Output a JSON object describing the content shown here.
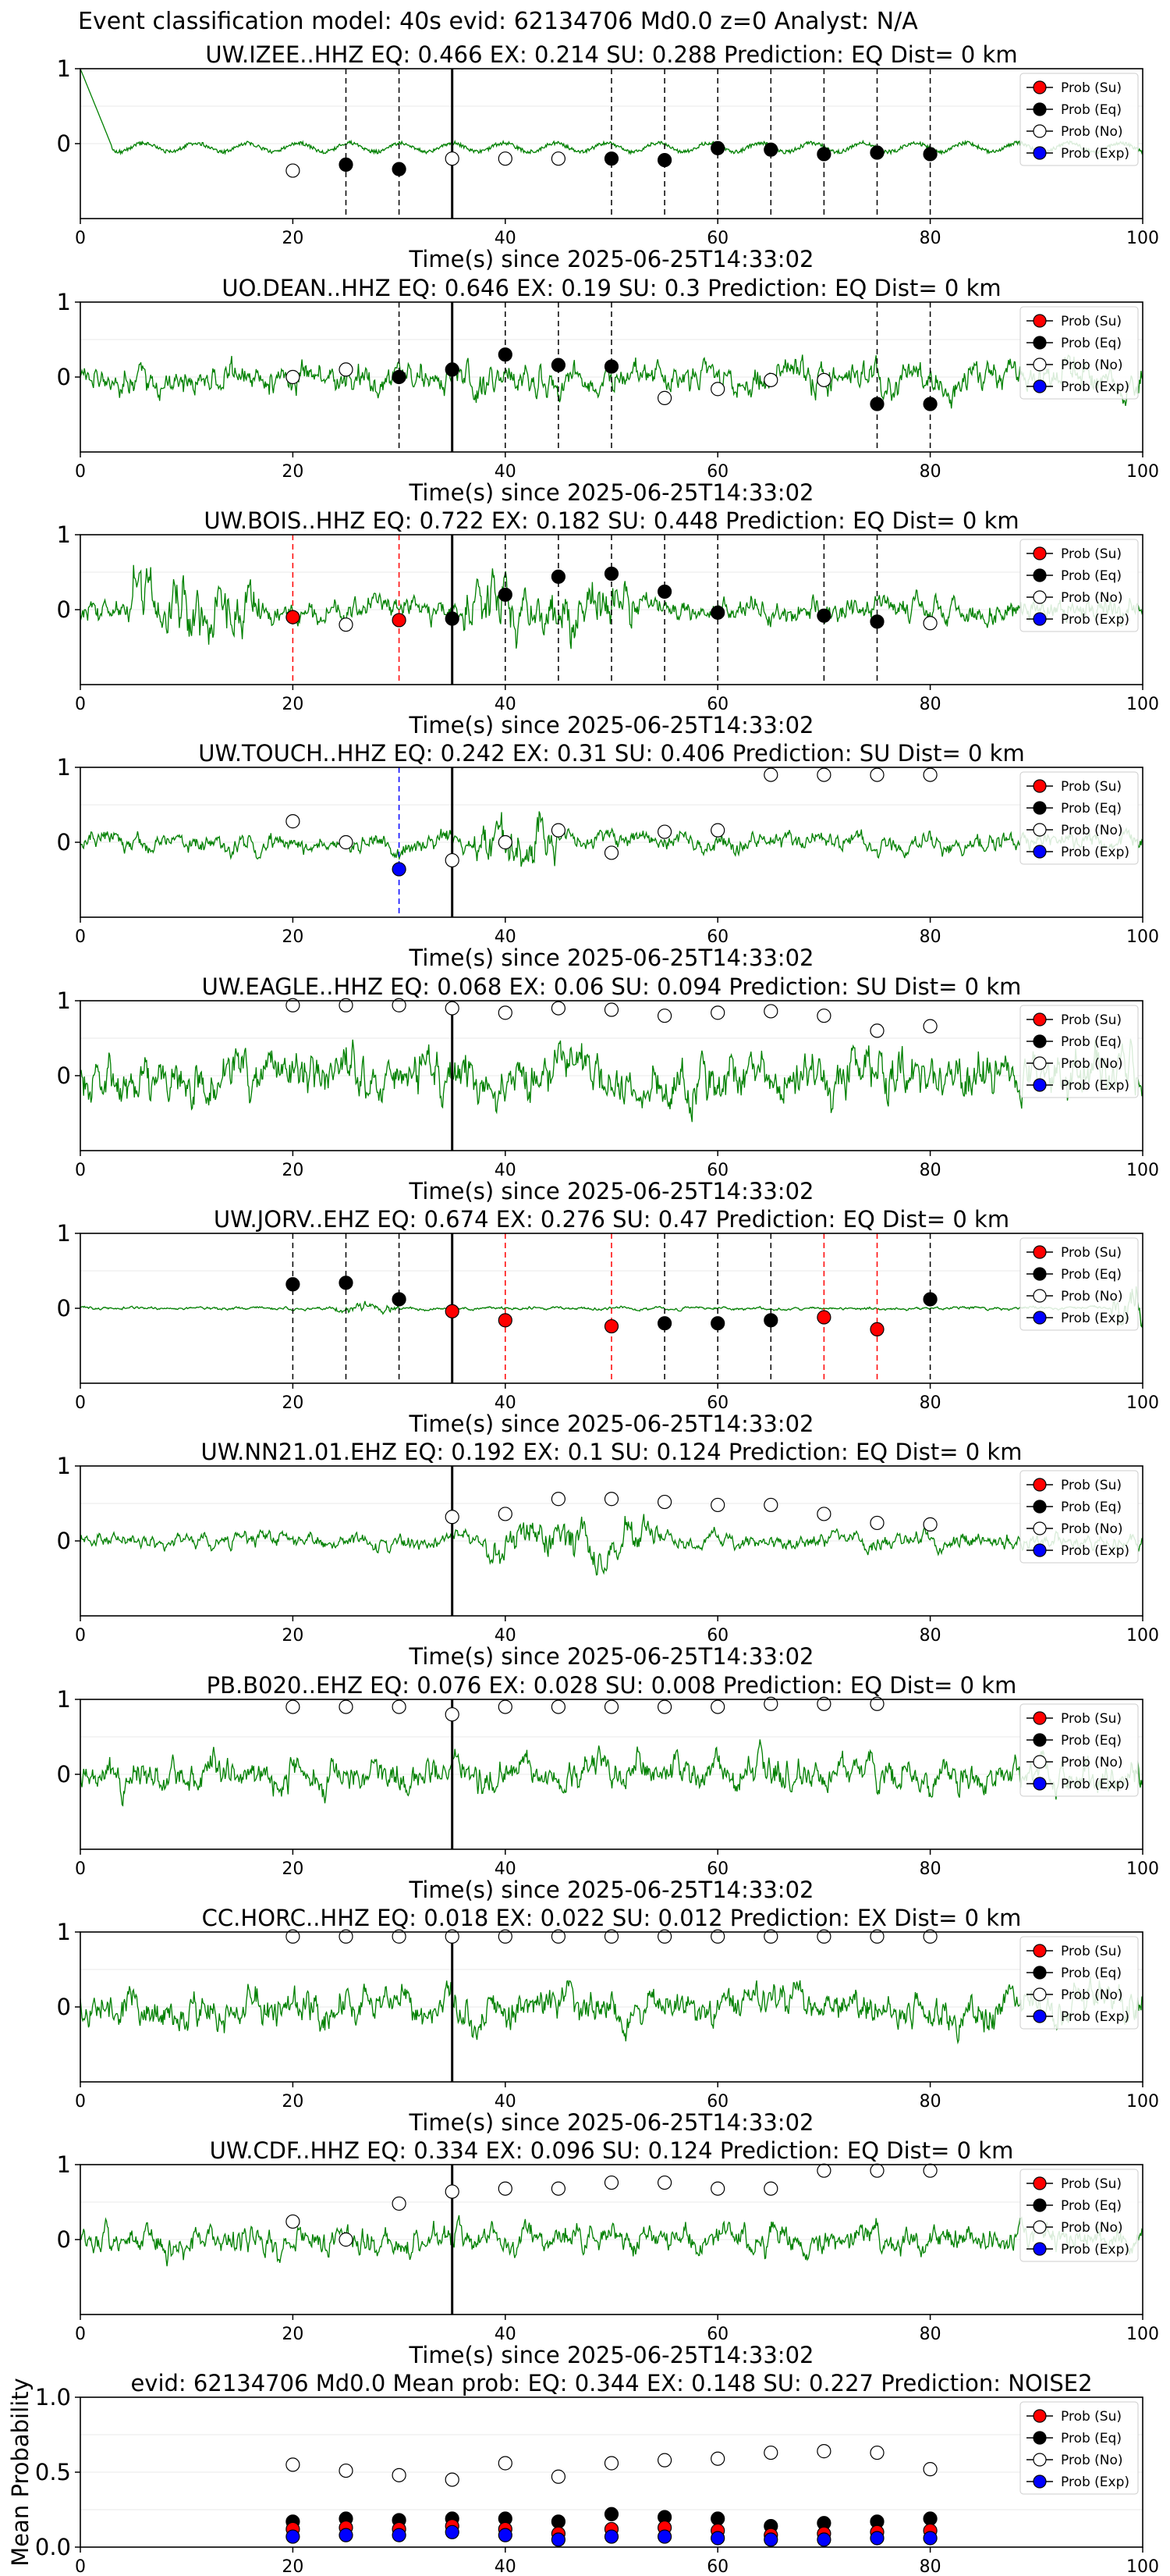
{
  "title": "Event classification model: 40s evid: 62134706 Md0.0 z=0 Analyst: N/A",
  "colors": {
    "waveform": "#008000",
    "su": "#ff0000",
    "eq": "#000000",
    "no": "#ffffff",
    "exp": "#0000ff",
    "marker_line": "#000000"
  },
  "legend": {
    "su": "Prob (Su)",
    "eq": "Prob (Eq)",
    "no": "Prob (No)",
    "exp": "Prob (Exp)"
  },
  "chart_data": [
    {
      "type": "line",
      "title": "UW.IZEE..HHZ   EQ: 0.466  EX: 0.214  SU: 0.288   Prediction: EQ    Dist= 0 km",
      "xlabel": "Time(s) since 2025-06-25T14:33:02",
      "xlim": [
        0,
        100
      ],
      "ylim": [
        -1,
        1
      ],
      "xticks": [
        "0",
        "20",
        "40",
        "60",
        "80",
        "100"
      ],
      "yticks": [
        "1",
        "0"
      ],
      "marker_time": 35,
      "legend_position": "top-right",
      "waveform": {
        "kind": "izee",
        "amplitude": 0.08
      },
      "points": [
        {
          "t": 20,
          "class": "no",
          "p": 0.32
        },
        {
          "t": 25,
          "class": "eq",
          "p": 0.36
        },
        {
          "t": 30,
          "class": "eq",
          "p": 0.33
        },
        {
          "t": 35,
          "class": "no",
          "p": 0.4
        },
        {
          "t": 40,
          "class": "no",
          "p": 0.4
        },
        {
          "t": 45,
          "class": "no",
          "p": 0.4
        },
        {
          "t": 50,
          "class": "eq",
          "p": 0.4
        },
        {
          "t": 55,
          "class": "eq",
          "p": 0.39
        },
        {
          "t": 60,
          "class": "eq",
          "p": 0.47
        },
        {
          "t": 65,
          "class": "eq",
          "p": 0.46
        },
        {
          "t": 70,
          "class": "eq",
          "p": 0.43
        },
        {
          "t": 75,
          "class": "eq",
          "p": 0.44
        },
        {
          "t": 80,
          "class": "eq",
          "p": 0.43
        }
      ]
    },
    {
      "type": "line",
      "title": "UO.DEAN..HHZ   EQ: 0.646  EX: 0.19  SU: 0.3   Prediction: EQ    Dist= 0 km",
      "xlabel": "Time(s) since 2025-06-25T14:33:02",
      "xlim": [
        0,
        100
      ],
      "ylim": [
        -1,
        1
      ],
      "xticks": [
        "0",
        "20",
        "40",
        "60",
        "80",
        "100"
      ],
      "yticks": [
        "1",
        "0"
      ],
      "marker_time": 35,
      "legend_position": "top-right",
      "waveform": {
        "kind": "mid",
        "amplitude": 0.5
      },
      "points": [
        {
          "t": 20,
          "class": "no",
          "p": 0.5
        },
        {
          "t": 25,
          "class": "no",
          "p": 0.55
        },
        {
          "t": 30,
          "class": "eq",
          "p": 0.5
        },
        {
          "t": 35,
          "class": "eq",
          "p": 0.55
        },
        {
          "t": 40,
          "class": "eq",
          "p": 0.65
        },
        {
          "t": 45,
          "class": "eq",
          "p": 0.58
        },
        {
          "t": 50,
          "class": "eq",
          "p": 0.57
        },
        {
          "t": 55,
          "class": "no",
          "p": 0.36
        },
        {
          "t": 60,
          "class": "no",
          "p": 0.42
        },
        {
          "t": 65,
          "class": "no",
          "p": 0.48
        },
        {
          "t": 70,
          "class": "no",
          "p": 0.48
        },
        {
          "t": 75,
          "class": "eq",
          "p": 0.32
        },
        {
          "t": 80,
          "class": "eq",
          "p": 0.32
        }
      ]
    },
    {
      "type": "line",
      "title": "UW.BOIS..HHZ   EQ: 0.722  EX: 0.182  SU: 0.448   Prediction: EQ    Dist= 0 km",
      "xlabel": "Time(s) since 2025-06-25T14:33:02",
      "xlim": [
        0,
        100
      ],
      "ylim": [
        -1,
        1
      ],
      "xticks": [
        "0",
        "20",
        "40",
        "60",
        "80",
        "100"
      ],
      "yticks": [
        "1",
        "0"
      ],
      "marker_time": 35,
      "legend_position": "top-right",
      "waveform": {
        "kind": "bois",
        "amplitude": 0.5
      },
      "points": [
        {
          "t": 20,
          "class": "su",
          "p": 0.45
        },
        {
          "t": 25,
          "class": "no",
          "p": 0.4
        },
        {
          "t": 30,
          "class": "su",
          "p": 0.43
        },
        {
          "t": 35,
          "class": "eq",
          "p": 0.44
        },
        {
          "t": 40,
          "class": "eq",
          "p": 0.6
        },
        {
          "t": 45,
          "class": "eq",
          "p": 0.72
        },
        {
          "t": 50,
          "class": "eq",
          "p": 0.74
        },
        {
          "t": 55,
          "class": "eq",
          "p": 0.62
        },
        {
          "t": 60,
          "class": "eq",
          "p": 0.48
        },
        {
          "t": 70,
          "class": "eq",
          "p": 0.46
        },
        {
          "t": 75,
          "class": "eq",
          "p": 0.42
        },
        {
          "t": 80,
          "class": "no",
          "p": 0.41
        }
      ]
    },
    {
      "type": "line",
      "title": "UW.TOUCH..HHZ   EQ: 0.242  EX: 0.31  SU: 0.406   Prediction: SU    Dist= 0 km",
      "xlabel": "Time(s) since 2025-06-25T14:33:02",
      "xlim": [
        0,
        100
      ],
      "ylim": [
        -1,
        1
      ],
      "xticks": [
        "0",
        "20",
        "40",
        "60",
        "80",
        "100"
      ],
      "yticks": [
        "1",
        "0"
      ],
      "marker_time": 35,
      "legend_position": "top-right",
      "waveform": {
        "kind": "touch",
        "amplitude": 0.3
      },
      "points": [
        {
          "t": 20,
          "class": "no",
          "p": 0.64
        },
        {
          "t": 25,
          "class": "no",
          "p": 0.5
        },
        {
          "t": 30,
          "class": "exp",
          "p": 0.32
        },
        {
          "t": 35,
          "class": "no",
          "p": 0.38
        },
        {
          "t": 40,
          "class": "no",
          "p": 0.5
        },
        {
          "t": 45,
          "class": "no",
          "p": 0.58
        },
        {
          "t": 50,
          "class": "no",
          "p": 0.43
        },
        {
          "t": 55,
          "class": "no",
          "p": 0.57
        },
        {
          "t": 60,
          "class": "no",
          "p": 0.58
        },
        {
          "t": 65,
          "class": "no",
          "p": 0.95
        },
        {
          "t": 70,
          "class": "no",
          "p": 0.95
        },
        {
          "t": 75,
          "class": "no",
          "p": 0.95
        },
        {
          "t": 80,
          "class": "no",
          "p": 0.95
        }
      ]
    },
    {
      "type": "line",
      "title": "UW.EAGLE..HHZ   EQ: 0.068  EX: 0.06  SU: 0.094   Prediction: SU    Dist= 0 km",
      "xlabel": "Time(s) since 2025-06-25T14:33:02",
      "xlim": [
        0,
        100
      ],
      "ylim": [
        -1,
        1
      ],
      "xticks": [
        "0",
        "20",
        "40",
        "60",
        "80",
        "100"
      ],
      "yticks": [
        "1",
        "0"
      ],
      "marker_time": 35,
      "legend_position": "top-right",
      "waveform": {
        "kind": "loud",
        "amplitude": 0.8
      },
      "points": [
        {
          "t": 20,
          "class": "no",
          "p": 0.97
        },
        {
          "t": 25,
          "class": "no",
          "p": 0.97
        },
        {
          "t": 30,
          "class": "no",
          "p": 0.97
        },
        {
          "t": 35,
          "class": "no",
          "p": 0.95
        },
        {
          "t": 40,
          "class": "no",
          "p": 0.92
        },
        {
          "t": 45,
          "class": "no",
          "p": 0.95
        },
        {
          "t": 50,
          "class": "no",
          "p": 0.94
        },
        {
          "t": 55,
          "class": "no",
          "p": 0.9
        },
        {
          "t": 60,
          "class": "no",
          "p": 0.92
        },
        {
          "t": 65,
          "class": "no",
          "p": 0.93
        },
        {
          "t": 70,
          "class": "no",
          "p": 0.9
        },
        {
          "t": 75,
          "class": "no",
          "p": 0.8
        },
        {
          "t": 80,
          "class": "no",
          "p": 0.83
        }
      ]
    },
    {
      "type": "line",
      "title": "UW.JORV..EHZ   EQ: 0.674  EX: 0.276  SU: 0.47   Prediction: EQ    Dist= 0 km",
      "xlabel": "Time(s) since 2025-06-25T14:33:02",
      "xlim": [
        0,
        100
      ],
      "ylim": [
        -1,
        1
      ],
      "xticks": [
        "0",
        "20",
        "40",
        "60",
        "80",
        "100"
      ],
      "yticks": [
        "1",
        "0"
      ],
      "marker_time": 35,
      "legend_position": "top-right",
      "waveform": {
        "kind": "jorv",
        "amplitude": 0.05
      },
      "points": [
        {
          "t": 20,
          "class": "eq",
          "p": 0.66
        },
        {
          "t": 25,
          "class": "eq",
          "p": 0.67
        },
        {
          "t": 30,
          "class": "eq",
          "p": 0.56
        },
        {
          "t": 35,
          "class": "su",
          "p": 0.48
        },
        {
          "t": 40,
          "class": "su",
          "p": 0.42
        },
        {
          "t": 50,
          "class": "su",
          "p": 0.38
        },
        {
          "t": 55,
          "class": "eq",
          "p": 0.4
        },
        {
          "t": 60,
          "class": "eq",
          "p": 0.4
        },
        {
          "t": 65,
          "class": "eq",
          "p": 0.42
        },
        {
          "t": 70,
          "class": "su",
          "p": 0.44
        },
        {
          "t": 75,
          "class": "su",
          "p": 0.36
        },
        {
          "t": 80,
          "class": "eq",
          "p": 0.56
        }
      ]
    },
    {
      "type": "line",
      "title": "UW.NN21.01.EHZ   EQ: 0.192  EX: 0.1  SU: 0.124   Prediction: EQ    Dist= 0 km",
      "xlabel": "Time(s) since 2025-06-25T14:33:02",
      "xlim": [
        0,
        100
      ],
      "ylim": [
        -1,
        1
      ],
      "xticks": [
        "0",
        "20",
        "40",
        "60",
        "80",
        "100"
      ],
      "yticks": [
        "1",
        "0"
      ],
      "marker_time": 35,
      "legend_position": "top-right",
      "waveform": {
        "kind": "nn21",
        "amplitude": 0.25
      },
      "points": [
        {
          "t": 35,
          "class": "no",
          "p": 0.66
        },
        {
          "t": 40,
          "class": "no",
          "p": 0.68
        },
        {
          "t": 45,
          "class": "no",
          "p": 0.78
        },
        {
          "t": 50,
          "class": "no",
          "p": 0.78
        },
        {
          "t": 55,
          "class": "no",
          "p": 0.76
        },
        {
          "t": 60,
          "class": "no",
          "p": 0.74
        },
        {
          "t": 65,
          "class": "no",
          "p": 0.74
        },
        {
          "t": 70,
          "class": "no",
          "p": 0.68
        },
        {
          "t": 75,
          "class": "no",
          "p": 0.62
        },
        {
          "t": 80,
          "class": "no",
          "p": 0.61
        }
      ]
    },
    {
      "type": "line",
      "title": "PB.B020..EHZ   EQ: 0.076  EX: 0.028  SU: 0.008   Prediction: EQ    Dist= 0 km",
      "xlabel": "Time(s) since 2025-06-25T14:33:02",
      "xlim": [
        0,
        100
      ],
      "ylim": [
        -1,
        1
      ],
      "xticks": [
        "0",
        "20",
        "40",
        "60",
        "80",
        "100"
      ],
      "yticks": [
        "1",
        "0"
      ],
      "marker_time": 35,
      "legend_position": "top-right",
      "waveform": {
        "kind": "mid",
        "amplitude": 0.55
      },
      "points": [
        {
          "t": 20,
          "class": "no",
          "p": 0.95
        },
        {
          "t": 25,
          "class": "no",
          "p": 0.95
        },
        {
          "t": 30,
          "class": "no",
          "p": 0.95
        },
        {
          "t": 35,
          "class": "no",
          "p": 0.9
        },
        {
          "t": 40,
          "class": "no",
          "p": 0.95
        },
        {
          "t": 45,
          "class": "no",
          "p": 0.95
        },
        {
          "t": 50,
          "class": "no",
          "p": 0.95
        },
        {
          "t": 55,
          "class": "no",
          "p": 0.95
        },
        {
          "t": 60,
          "class": "no",
          "p": 0.95
        },
        {
          "t": 65,
          "class": "no",
          "p": 0.97
        },
        {
          "t": 70,
          "class": "no",
          "p": 0.97
        },
        {
          "t": 75,
          "class": "no",
          "p": 0.97
        }
      ]
    },
    {
      "type": "line",
      "title": "CC.HORC..HHZ   EQ: 0.018  EX: 0.022  SU: 0.012   Prediction: EX    Dist= 0 km",
      "xlabel": "Time(s) since 2025-06-25T14:33:02",
      "xlim": [
        0,
        100
      ],
      "ylim": [
        -1,
        1
      ],
      "xticks": [
        "0",
        "20",
        "40",
        "60",
        "80",
        "100"
      ],
      "yticks": [
        "1",
        "0"
      ],
      "marker_time": 35,
      "legend_position": "top-right",
      "waveform": {
        "kind": "mid",
        "amplitude": 0.6
      },
      "points": [
        {
          "t": 20,
          "class": "no",
          "p": 0.97
        },
        {
          "t": 25,
          "class": "no",
          "p": 0.97
        },
        {
          "t": 30,
          "class": "no",
          "p": 0.97
        },
        {
          "t": 35,
          "class": "no",
          "p": 0.97
        },
        {
          "t": 40,
          "class": "no",
          "p": 0.97
        },
        {
          "t": 45,
          "class": "no",
          "p": 0.97
        },
        {
          "t": 50,
          "class": "no",
          "p": 0.97
        },
        {
          "t": 55,
          "class": "no",
          "p": 0.97
        },
        {
          "t": 60,
          "class": "no",
          "p": 0.97
        },
        {
          "t": 65,
          "class": "no",
          "p": 0.97
        },
        {
          "t": 70,
          "class": "no",
          "p": 0.97
        },
        {
          "t": 75,
          "class": "no",
          "p": 0.97
        },
        {
          "t": 80,
          "class": "no",
          "p": 0.97
        }
      ]
    },
    {
      "type": "line",
      "title": "UW.CDF..HHZ   EQ: 0.334  EX: 0.096  SU: 0.124   Prediction: EQ    Dist= 0 km",
      "xlabel": "Time(s) since 2025-06-25T14:33:02",
      "xlim": [
        0,
        100
      ],
      "ylim": [
        -1,
        1
      ],
      "xticks": [
        "0",
        "20",
        "40",
        "60",
        "80",
        "100"
      ],
      "yticks": [
        "1",
        "0"
      ],
      "marker_time": 35,
      "legend_position": "top-right",
      "waveform": {
        "kind": "mid",
        "amplitude": 0.45
      },
      "points": [
        {
          "t": 20,
          "class": "no",
          "p": 0.62
        },
        {
          "t": 25,
          "class": "no",
          "p": 0.5
        },
        {
          "t": 30,
          "class": "no",
          "p": 0.74
        },
        {
          "t": 35,
          "class": "no",
          "p": 0.82
        },
        {
          "t": 40,
          "class": "no",
          "p": 0.84
        },
        {
          "t": 45,
          "class": "no",
          "p": 0.84
        },
        {
          "t": 50,
          "class": "no",
          "p": 0.88
        },
        {
          "t": 55,
          "class": "no",
          "p": 0.88
        },
        {
          "t": 60,
          "class": "no",
          "p": 0.84
        },
        {
          "t": 65,
          "class": "no",
          "p": 0.84
        },
        {
          "t": 70,
          "class": "no",
          "p": 0.96
        },
        {
          "t": 75,
          "class": "no",
          "p": 0.96
        },
        {
          "t": 80,
          "class": "no",
          "p": 0.96
        }
      ]
    },
    {
      "type": "scatter",
      "title": "evid: 62134706  Md0.0   Mean prob:   EQ: 0.344  EX: 0.148  SU: 0.227   Prediction: NOISE2",
      "xlabel": "",
      "ylabel": "Mean Probability",
      "xlim": [
        0,
        100
      ],
      "ylim": [
        0,
        1
      ],
      "xticks": [
        "0",
        "20",
        "40",
        "60",
        "80",
        "100"
      ],
      "yticks": [
        "1.0",
        "0.5",
        "0.0"
      ],
      "legend_position": "top-right",
      "series": [
        {
          "class": "no",
          "t": [
            20,
            25,
            30,
            35,
            40,
            45,
            50,
            55,
            60,
            65,
            70,
            75,
            80
          ],
          "p": [
            0.55,
            0.51,
            0.48,
            0.45,
            0.56,
            0.47,
            0.56,
            0.58,
            0.59,
            0.63,
            0.64,
            0.63,
            0.52
          ]
        },
        {
          "class": "eq",
          "t": [
            20,
            25,
            30,
            35,
            40,
            45,
            50,
            55,
            60,
            65,
            70,
            75,
            80
          ],
          "p": [
            0.17,
            0.19,
            0.18,
            0.19,
            0.19,
            0.17,
            0.22,
            0.2,
            0.19,
            0.14,
            0.16,
            0.17,
            0.19
          ]
        },
        {
          "class": "su",
          "t": [
            20,
            25,
            30,
            35,
            40,
            45,
            50,
            55,
            60,
            65,
            70,
            75,
            80
          ],
          "p": [
            0.12,
            0.13,
            0.12,
            0.14,
            0.12,
            0.09,
            0.12,
            0.13,
            0.11,
            0.08,
            0.09,
            0.1,
            0.11
          ]
        },
        {
          "class": "exp",
          "t": [
            20,
            25,
            30,
            35,
            40,
            45,
            50,
            55,
            60,
            65,
            70,
            75,
            80
          ],
          "p": [
            0.07,
            0.08,
            0.08,
            0.1,
            0.08,
            0.05,
            0.07,
            0.07,
            0.06,
            0.05,
            0.05,
            0.06,
            0.06
          ]
        }
      ]
    }
  ]
}
